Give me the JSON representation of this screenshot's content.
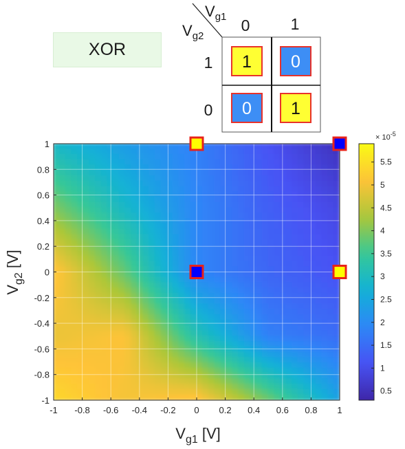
{
  "gate_label": "XOR",
  "truth_table": {
    "col_var": "V",
    "col_sub": "g1",
    "row_var": "V",
    "row_sub": "g2",
    "col_headers": [
      "0",
      "1"
    ],
    "row_headers": [
      "1",
      "0"
    ],
    "cells": [
      [
        "1",
        "0"
      ],
      [
        "0",
        "1"
      ]
    ],
    "colors": {
      "one": "#ffff33",
      "zero": "#3d8ef5",
      "border": "#e8322a",
      "one_text": "#111111",
      "zero_text": "#ffffff"
    }
  },
  "chart_data": {
    "type": "heatmap",
    "title": "",
    "xlabel_main": "V",
    "xlabel_sub": "g1",
    "xlabel_unit": " [V]",
    "ylabel_main": "V",
    "ylabel_sub": "g2",
    "ylabel_unit": " [V]",
    "xlim": [
      -1,
      1
    ],
    "ylim": [
      -1,
      1
    ],
    "x_ticks": [
      "-1",
      "-0.8",
      "-0.6",
      "-0.4",
      "-0.2",
      "0",
      "0.2",
      "0.4",
      "0.6",
      "0.8",
      "1"
    ],
    "y_ticks": [
      "1",
      "0.8",
      "0.6",
      "0.4",
      "0.2",
      "0",
      "-0.2",
      "-0.4",
      "-0.6",
      "-0.8",
      "-1"
    ],
    "grid": true,
    "colormap": "parula",
    "colorbar": {
      "range": [
        3e-06,
        5.9e-05
      ],
      "exponent_base": "× 10",
      "exponent_power": "-5",
      "ticks": [
        "5.5",
        "5",
        "4.5",
        "4",
        "3.5",
        "3",
        "2.5",
        "2",
        "1.5",
        "1",
        "0.5"
      ]
    },
    "field_samples": {
      "x": [
        -1,
        -0.5,
        0,
        0.5,
        1
      ],
      "y": [
        1,
        0.5,
        0,
        -0.5,
        -1
      ],
      "values_e5": [
        [
          2.9,
          2.3,
          1.8,
          1.1,
          0.5
        ],
        [
          4.0,
          2.9,
          1.9,
          1.3,
          0.9
        ],
        [
          5.2,
          3.8,
          1.9,
          1.4,
          1.1
        ],
        [
          4.9,
          5.1,
          3.2,
          1.8,
          1.5
        ],
        [
          5.4,
          5.0,
          5.2,
          3.9,
          2.4
        ]
      ]
    },
    "markers": [
      {
        "x": 0,
        "y": 1,
        "color": "#ffff00",
        "logic": "1"
      },
      {
        "x": 1,
        "y": 1,
        "color": "#0000ff",
        "logic": "0"
      },
      {
        "x": 0,
        "y": 0,
        "color": "#0000ff",
        "logic": "0"
      },
      {
        "x": 1,
        "y": 0,
        "color": "#ffff00",
        "logic": "1"
      }
    ],
    "marker_border": "#e8221a"
  }
}
